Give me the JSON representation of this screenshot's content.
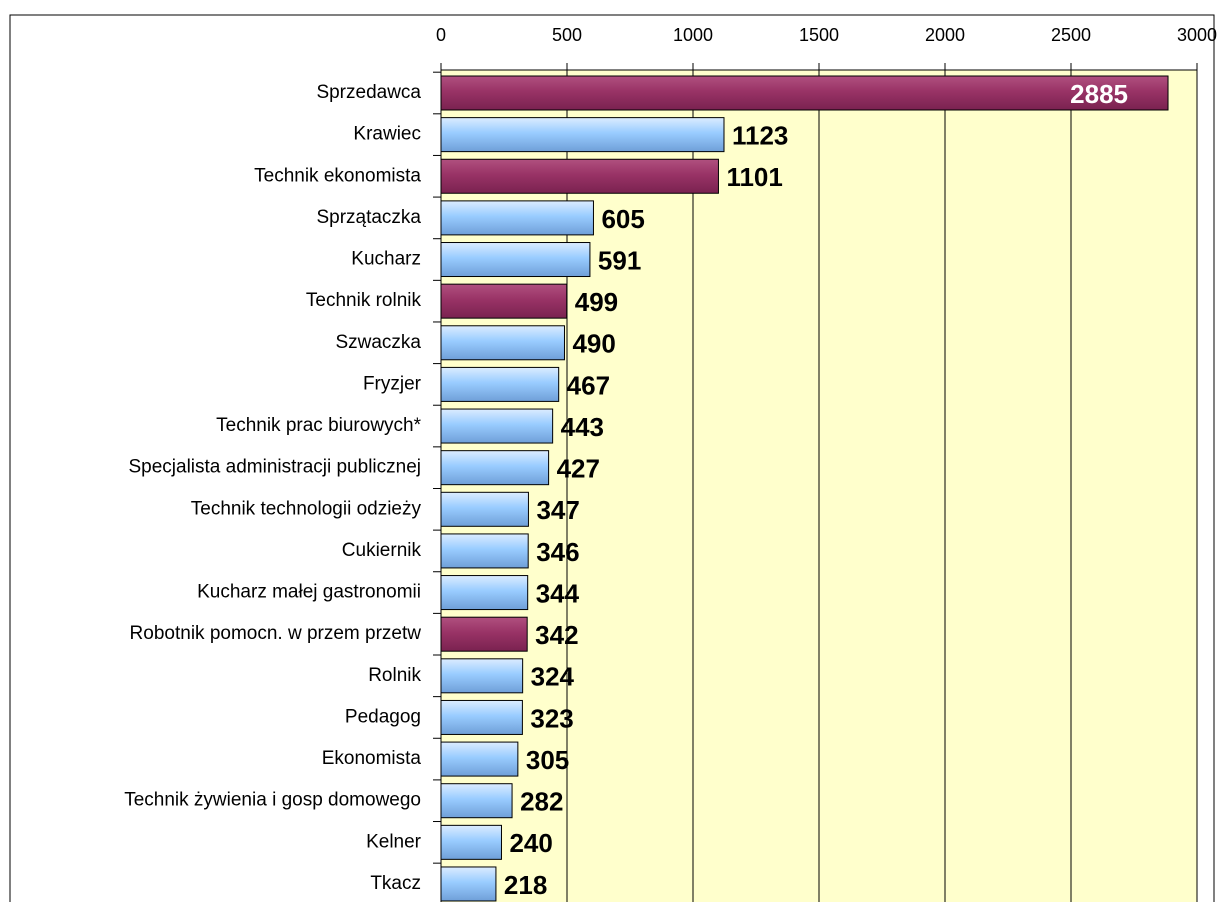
{
  "chart_data": {
    "type": "barh",
    "categories": [
      "Sprzedawca",
      "Krawiec",
      "Technik ekonomista",
      "Sprzątaczka",
      "Kucharz",
      "Technik rolnik",
      "Szwaczka",
      "Fryzjer",
      "Technik prac biurowych*",
      "Specjalista administracji publicznej",
      "Technik technologii odzieży",
      "Cukiernik",
      "Kucharz małej gastronomii",
      "Robotnik pomocn. w przem przetw",
      "Rolnik",
      "Pedagog",
      "Ekonomista",
      "Technik żywienia i gosp domowego",
      "Kelner",
      "Tkacz"
    ],
    "values": [
      2885,
      1123,
      1101,
      605,
      591,
      499,
      490,
      467,
      443,
      427,
      347,
      346,
      344,
      342,
      324,
      323,
      305,
      282,
      240,
      218
    ],
    "colors": [
      "#993366",
      "#99ccff",
      "#993366",
      "#99ccff",
      "#99ccff",
      "#993366",
      "#99ccff",
      "#99ccff",
      "#99ccff",
      "#99ccff",
      "#99ccff",
      "#99ccff",
      "#99ccff",
      "#993366",
      "#99ccff",
      "#99ccff",
      "#99ccff",
      "#99ccff",
      "#99ccff",
      "#99ccff"
    ],
    "xlim": [
      0,
      3000
    ],
    "xticks": [
      0,
      500,
      1000,
      1500,
      2000,
      2500,
      3000
    ],
    "grid": true,
    "plot_background": "#ffffcc"
  }
}
